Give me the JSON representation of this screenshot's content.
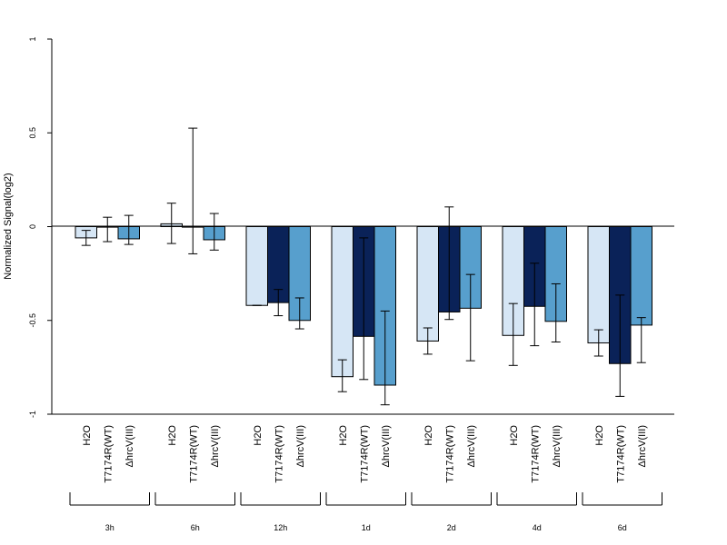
{
  "chart_data": {
    "type": "bar",
    "ylabel": "Normalized Signal(log2)",
    "ylim": [
      -1,
      1
    ],
    "yticks": [
      "1",
      "0.5",
      "0",
      "-0.5",
      "-1"
    ],
    "groups": [
      "3h",
      "6h",
      "12h",
      "1d",
      "2d",
      "4d",
      "6d"
    ],
    "conditions": [
      "H2O",
      "T7174R(WT)",
      "ΔhrcV(III)"
    ],
    "colors": {
      "H2O": "#d6e6f5",
      "T7174R(WT)": "#0a2258",
      "ΔhrcV(III)": "#579fcd"
    },
    "series": [
      {
        "name": "H2O",
        "values": [
          -0.06,
          0.015,
          -0.42,
          -0.8,
          -0.61,
          -0.58,
          -0.62
        ],
        "err_low": [
          -0.1,
          -0.09,
          -0.42,
          -0.88,
          -0.68,
          -0.74,
          -0.69
        ],
        "err_high": [
          -0.02,
          0.125,
          -0.42,
          -0.71,
          -0.54,
          -0.41,
          -0.55
        ]
      },
      {
        "name": "T7174R(WT)",
        "values": [
          0,
          0,
          -0.405,
          -0.585,
          -0.455,
          -0.425,
          -0.73
        ],
        "err_low": [
          -0.08,
          -0.145,
          -0.475,
          -0.815,
          -0.495,
          -0.635,
          -0.905
        ],
        "err_high": [
          0.05,
          0.525,
          -0.335,
          -0.06,
          0.105,
          -0.195,
          -0.365
        ]
      },
      {
        "name": "ΔhrcV(III)",
        "values": [
          -0.065,
          -0.07,
          -0.5,
          -0.845,
          -0.435,
          -0.505,
          -0.525
        ],
        "err_low": [
          -0.095,
          -0.125,
          -0.545,
          -0.95,
          -0.715,
          -0.615,
          -0.725
        ],
        "err_high": [
          0.06,
          0.07,
          -0.38,
          -0.45,
          -0.255,
          -0.305,
          -0.485
        ]
      }
    ],
    "grid": false,
    "legend": "none"
  }
}
